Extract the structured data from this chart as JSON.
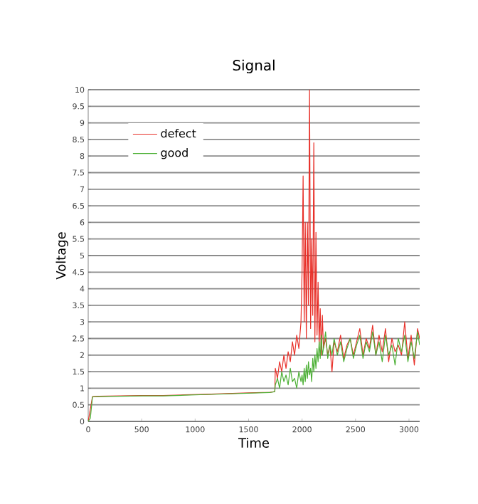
{
  "chart_data": {
    "type": "line",
    "title": "Signal",
    "xlabel": "Time",
    "ylabel": "Voltage",
    "x": [
      0,
      20,
      40,
      100,
      300,
      500,
      700,
      900,
      1100,
      1300,
      1500,
      1700,
      1745,
      1750,
      1770,
      1790,
      1810,
      1830,
      1850,
      1870,
      1890,
      1910,
      1930,
      1950,
      1970,
      1990,
      2000,
      2010,
      2020,
      2030,
      2040,
      2050,
      2060,
      2070,
      2080,
      2090,
      2100,
      2110,
      2120,
      2130,
      2140,
      2150,
      2160,
      2170,
      2180,
      2190,
      2200,
      2220,
      2240,
      2260,
      2280,
      2300,
      2330,
      2360,
      2390,
      2420,
      2450,
      2480,
      2510,
      2540,
      2570,
      2600,
      2630,
      2660,
      2690,
      2720,
      2750,
      2780,
      2810,
      2840,
      2870,
      2900,
      2930,
      2960,
      2990,
      3020,
      3050,
      3080,
      3100
    ],
    "series": [
      {
        "name": "defect",
        "color": "#e8312a",
        "values": [
          0,
          null,
          0.75,
          0.76,
          0.77,
          0.78,
          0.78,
          0.8,
          0.82,
          0.84,
          0.86,
          0.88,
          0.9,
          1.6,
          1.3,
          1.8,
          1.5,
          2.0,
          1.6,
          2.1,
          1.8,
          2.4,
          2.0,
          2.6,
          2.2,
          3.0,
          4.5,
          7.4,
          3.0,
          6.0,
          2.5,
          6.0,
          3.5,
          10.0,
          2.8,
          5.5,
          3.2,
          8.4,
          2.4,
          5.7,
          2.6,
          4.2,
          2.3,
          3.4,
          2.0,
          3.2,
          2.2,
          2.5,
          2.0,
          2.3,
          1.5,
          2.4,
          2.1,
          2.6,
          1.9,
          2.3,
          2.5,
          2.0,
          2.4,
          2.8,
          2.0,
          2.5,
          2.2,
          2.9,
          2.0,
          2.6,
          2.1,
          2.8,
          1.8,
          2.5,
          2.1,
          2.3,
          2.0,
          3.0,
          1.9,
          2.6,
          1.7,
          2.8,
          2.5
        ]
      },
      {
        "name": "good",
        "color": "#4cb035",
        "values": [
          0,
          0.1,
          0.74,
          0.75,
          0.76,
          0.77,
          0.77,
          0.79,
          0.81,
          0.83,
          0.85,
          0.87,
          0.9,
          1.1,
          1.3,
          1.0,
          1.5,
          1.2,
          1.4,
          1.1,
          1.6,
          1.2,
          1.3,
          1.0,
          1.5,
          1.2,
          1.4,
          1.1,
          1.6,
          1.2,
          1.7,
          1.3,
          1.8,
          1.4,
          1.6,
          1.2,
          1.9,
          1.5,
          2.0,
          1.6,
          2.2,
          1.8,
          2.4,
          1.9,
          2.6,
          2.0,
          2.2,
          2.7,
          1.9,
          2.3,
          2.0,
          2.5,
          2.0,
          2.4,
          1.8,
          2.2,
          2.5,
          1.9,
          2.3,
          2.6,
          1.9,
          2.4,
          2.1,
          2.7,
          2.0,
          2.4,
          1.8,
          2.6,
          2.0,
          2.3,
          1.7,
          2.5,
          2.1,
          2.6,
          1.8,
          2.4,
          1.9,
          2.7,
          2.3
        ]
      }
    ],
    "xlim": [
      0,
      3100
    ],
    "ylim": [
      0,
      10
    ],
    "xticks": [
      0,
      500,
      1000,
      1500,
      2000,
      2500,
      3000
    ],
    "yticks": [
      0,
      0.5,
      1,
      1.5,
      2,
      2.5,
      3,
      3.5,
      4,
      4.5,
      5,
      5.5,
      6,
      6.5,
      7,
      7.5,
      8,
      8.5,
      9,
      9.5,
      10
    ],
    "grid": "y",
    "legend": "top left",
    "marker": "none",
    "line_style": "solid"
  }
}
